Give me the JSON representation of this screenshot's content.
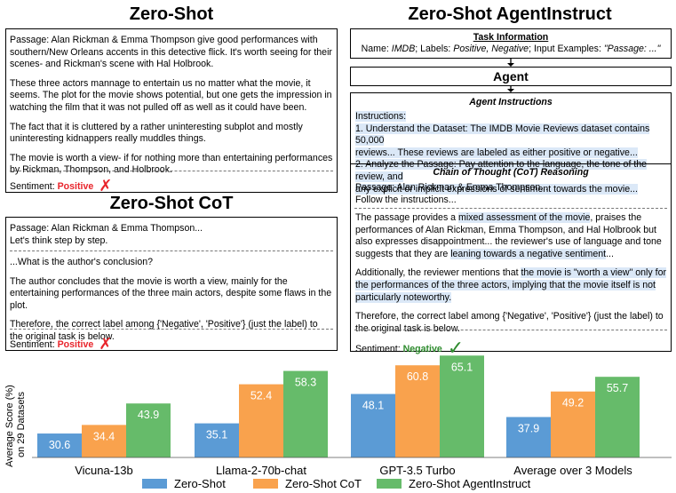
{
  "zero_shot": {
    "title": "Zero-Shot",
    "paragraphs": [
      "Passage: Alan Rickman & Emma Thompson give good performances with southern/New Orleans accents in this detective flick. It's worth seeing for their scenes- and Rickman's scene with Hal Holbrook.",
      "These three actors mannage to entertain us no matter what the movie, it seems. The plot for the movie shows potential, but one gets the impression in watching the film that it was not pulled off as well as it could have been.",
      "The fact that it is cluttered by a rather uninteresting subplot and mostly uninteresting kidnappers really muddles things.",
      "The movie is worth a view- if for nothing more than entertaining performances by Rickman, Thompson, and Holbrook."
    ],
    "sentiment_label": "Sentiment:",
    "sentiment_value": "Positive",
    "mark": "✗"
  },
  "zero_shot_cot": {
    "title": "Zero-Shot CoT",
    "intro_lines": [
      "Passage: Alan Rickman & Emma Thompson...",
      "Let's think step by step."
    ],
    "paragraphs": [
      "...What is the author's conclusion?",
      "The author concludes that the movie is worth a view, mainly for the entertaining performances of the three main actors, despite some flaws in the plot.",
      "Therefore, the correct label among {'Negative', 'Positive'} (just the label) to the original task is below."
    ],
    "sentiment_label": "Sentiment:",
    "sentiment_value": "Positive",
    "mark": "✗"
  },
  "agentinstruct": {
    "title": "Zero-Shot AgentInstruct",
    "task_info": {
      "heading": "Task Information",
      "name_label": "Name:",
      "name_value": "IMDB",
      "labels_label": "; Labels:",
      "labels_value": "Positive, Negative",
      "inputs_label": "; Input Examples:",
      "inputs_value": "\"Passage: ...\""
    },
    "agent_label": "Agent",
    "instructions_heading": "Agent Instructions",
    "instructions_lines": [
      "Instructions:",
      "1. Understand the Dataset: The IMDB Movie Reviews dataset contains 50,000",
      "reviews... These reviews are labeled as either positive or negative...",
      "2. Analyze the Passage: Pay attention to the language, the tone of the review, and",
      "any explicit or implicit expressions of sentiment towards the movie..."
    ],
    "cot_heading": "Chain of Thought (CoT) Reasoning",
    "cot_intro": [
      "Passage: Alan Rickman & Emma Thompson...",
      "Follow the instructions..."
    ],
    "cot_p1": {
      "a": "The passage provides a ",
      "hl1": "mixed assessment of the movie",
      "b": ", praises the performances of Alan Rickman, Emma Thompson, and Hal Holbrook but also expresses disappointment... the reviewer's use of language and tone suggests that they are ",
      "hl2": "leaning towards a negative sentiment",
      "c": "..."
    },
    "cot_p2": {
      "a": "Additionally, the reviewer mentions that ",
      "hl": "the movie is \"worth a view\" only for the performances of the three actors, implying that the movie itself is not particularly noteworthy."
    },
    "cot_p3": "Therefore, the correct label among {'Negative', 'Positive'} (just the label) to the original task is below.",
    "sentiment_label": "Sentiment:",
    "sentiment_value": "Negative",
    "mark": "✓"
  },
  "colors": {
    "zero_shot": "#5b9bd5",
    "zero_shot_cot": "#f9a24d",
    "agentinstruct": "#66bb6a",
    "positive": "#e8242b",
    "negative": "#2e8b2e"
  },
  "chart_data": {
    "type": "bar",
    "categories": [
      "Vicuna-13b",
      "Llama-2-70b-chat",
      "GPT-3.5 Turbo",
      "Average over 3 Models"
    ],
    "series": [
      {
        "name": "Zero-Shot",
        "values": [
          30.6,
          35.1,
          48.1,
          37.9
        ]
      },
      {
        "name": "Zero-Shot CoT",
        "values": [
          34.4,
          52.4,
          60.8,
          49.2
        ]
      },
      {
        "name": "Zero-Shot AgentInstruct",
        "values": [
          43.9,
          58.3,
          65.1,
          55.7
        ]
      }
    ],
    "ylabel_line1": "Average Score (%)",
    "ylabel_line2": "on 29 Datasets",
    "ylim": [
      20,
      66
    ],
    "legend_position": "bottom",
    "grid": false
  }
}
